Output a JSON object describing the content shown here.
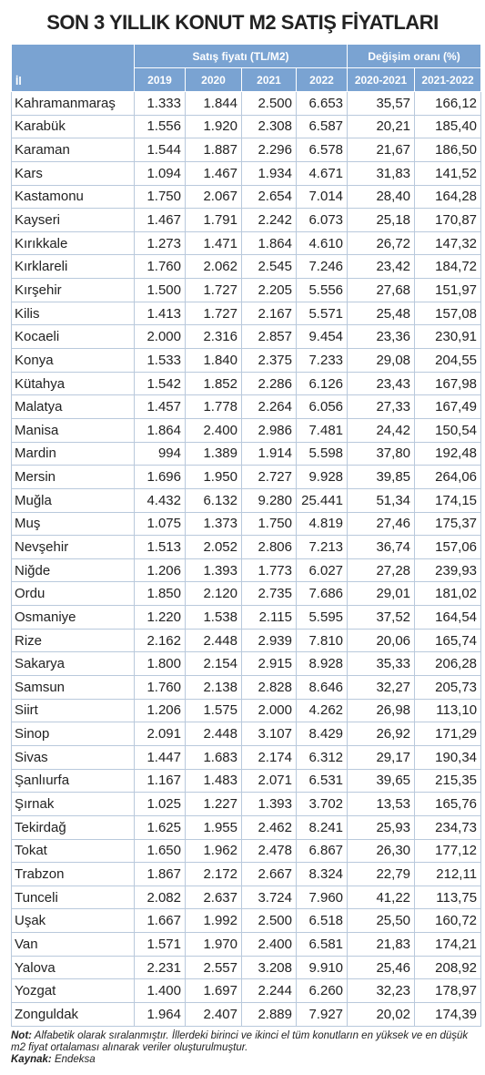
{
  "title": "SON 3 YILLIK KONUT M2 SATIŞ FİYATLARI",
  "table": {
    "city_header": "İl",
    "group_headers": [
      "Satış fiyatı (TL/M2)",
      "Değişim oranı (%)"
    ],
    "columns": [
      "2019",
      "2020",
      "2021",
      "2022",
      "2020-2021",
      "2021-2022"
    ],
    "rows": [
      [
        "Kahramanmaraş",
        "1.333",
        "1.844",
        "2.500",
        "6.653",
        "35,57",
        "166,12"
      ],
      [
        "Karabük",
        "1.556",
        "1.920",
        "2.308",
        "6.587",
        "20,21",
        "185,40"
      ],
      [
        "Karaman",
        "1.544",
        "1.887",
        "2.296",
        "6.578",
        "21,67",
        "186,50"
      ],
      [
        "Kars",
        "1.094",
        "1.467",
        "1.934",
        "4.671",
        "31,83",
        "141,52"
      ],
      [
        "Kastamonu",
        "1.750",
        "2.067",
        "2.654",
        "7.014",
        "28,40",
        "164,28"
      ],
      [
        "Kayseri",
        "1.467",
        "1.791",
        "2.242",
        "6.073",
        "25,18",
        "170,87"
      ],
      [
        "Kırıkkale",
        "1.273",
        "1.471",
        "1.864",
        "4.610",
        "26,72",
        "147,32"
      ],
      [
        "Kırklareli",
        "1.760",
        "2.062",
        "2.545",
        "7.246",
        "23,42",
        "184,72"
      ],
      [
        "Kırşehir",
        "1.500",
        "1.727",
        "2.205",
        "5.556",
        "27,68",
        "151,97"
      ],
      [
        "Kilis",
        "1.413",
        "1.727",
        "2.167",
        "5.571",
        "25,48",
        "157,08"
      ],
      [
        "Kocaeli",
        "2.000",
        "2.316",
        "2.857",
        "9.454",
        "23,36",
        "230,91"
      ],
      [
        "Konya",
        "1.533",
        "1.840",
        "2.375",
        "7.233",
        "29,08",
        "204,55"
      ],
      [
        "Kütahya",
        "1.542",
        "1.852",
        "2.286",
        "6.126",
        "23,43",
        "167,98"
      ],
      [
        "Malatya",
        "1.457",
        "1.778",
        "2.264",
        "6.056",
        "27,33",
        "167,49"
      ],
      [
        "Manisa",
        "1.864",
        "2.400",
        "2.986",
        "7.481",
        "24,42",
        "150,54"
      ],
      [
        "Mardin",
        "994",
        "1.389",
        "1.914",
        "5.598",
        "37,80",
        "192,48"
      ],
      [
        "Mersin",
        "1.696",
        "1.950",
        "2.727",
        "9.928",
        "39,85",
        "264,06"
      ],
      [
        "Muğla",
        "4.432",
        "6.132",
        "9.280",
        "25.441",
        "51,34",
        "174,15"
      ],
      [
        "Muş",
        "1.075",
        "1.373",
        "1.750",
        "4.819",
        "27,46",
        "175,37"
      ],
      [
        "Nevşehir",
        "1.513",
        "2.052",
        "2.806",
        "7.213",
        "36,74",
        "157,06"
      ],
      [
        "Niğde",
        "1.206",
        "1.393",
        "1.773",
        "6.027",
        "27,28",
        "239,93"
      ],
      [
        "Ordu",
        "1.850",
        "2.120",
        "2.735",
        "7.686",
        "29,01",
        "181,02"
      ],
      [
        "Osmaniye",
        "1.220",
        "1.538",
        "2.115",
        "5.595",
        "37,52",
        "164,54"
      ],
      [
        "Rize",
        "2.162",
        "2.448",
        "2.939",
        "7.810",
        "20,06",
        "165,74"
      ],
      [
        "Sakarya",
        "1.800",
        "2.154",
        "2.915",
        "8.928",
        "35,33",
        "206,28"
      ],
      [
        "Samsun",
        "1.760",
        "2.138",
        "2.828",
        "8.646",
        "32,27",
        "205,73"
      ],
      [
        "Siirt",
        "1.206",
        "1.575",
        "2.000",
        "4.262",
        "26,98",
        "113,10"
      ],
      [
        "Sinop",
        "2.091",
        "2.448",
        "3.107",
        "8.429",
        "26,92",
        "171,29"
      ],
      [
        "Sivas",
        "1.447",
        "1.683",
        "2.174",
        "6.312",
        "29,17",
        "190,34"
      ],
      [
        "Şanlıurfa",
        "1.167",
        "1.483",
        "2.071",
        "6.531",
        "39,65",
        "215,35"
      ],
      [
        "Şırnak",
        "1.025",
        "1.227",
        "1.393",
        "3.702",
        "13,53",
        "165,76"
      ],
      [
        "Tekirdağ",
        "1.625",
        "1.955",
        "2.462",
        "8.241",
        "25,93",
        "234,73"
      ],
      [
        "Tokat",
        "1.650",
        "1.962",
        "2.478",
        "6.867",
        "26,30",
        "177,12"
      ],
      [
        "Trabzon",
        "1.867",
        "2.172",
        "2.667",
        "8.324",
        "22,79",
        "212,11"
      ],
      [
        "Tunceli",
        "2.082",
        "2.637",
        "3.724",
        "7.960",
        "41,22",
        "113,75"
      ],
      [
        "Uşak",
        "1.667",
        "1.992",
        "2.500",
        "6.518",
        "25,50",
        "160,72"
      ],
      [
        "Van",
        "1.571",
        "1.970",
        "2.400",
        "6.581",
        "21,83",
        "174,21"
      ],
      [
        "Yalova",
        "2.231",
        "2.557",
        "3.208",
        "9.910",
        "25,46",
        "208,92"
      ],
      [
        "Yozgat",
        "1.400",
        "1.697",
        "2.244",
        "6.260",
        "32,23",
        "178,97"
      ],
      [
        "Zonguldak",
        "1.964",
        "2.407",
        "2.889",
        "7.927",
        "20,02",
        "174,39"
      ]
    ]
  },
  "note": {
    "label": "Not:",
    "text": "Alfabetik olarak sıralanmıştır. İllerdeki birinci ve ikinci el tüm konutların en yüksek ve en düşük m2 fiyat ortalaması alınarak veriler oluşturulmuştur."
  },
  "source": {
    "label": "Kaynak:",
    "text": "Endeksa"
  }
}
